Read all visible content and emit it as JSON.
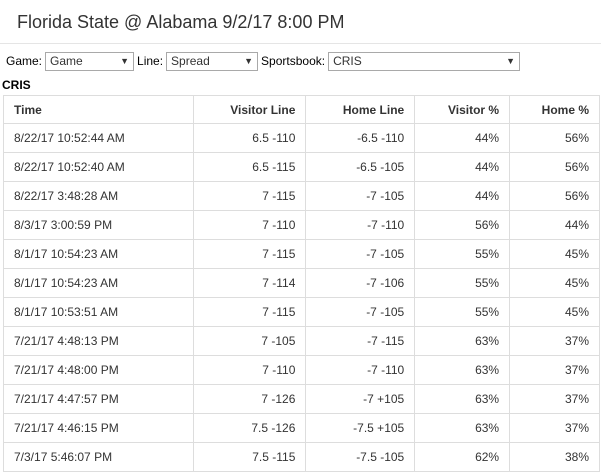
{
  "page": {
    "title": "Florida State @ Alabama 9/2/17 8:00 PM"
  },
  "filters": {
    "game_label": "Game:",
    "game_value": "Game",
    "line_label": "Line:",
    "line_value": "Spread",
    "sportsbook_label": "Sportsbook:",
    "sportsbook_value": "CRIS"
  },
  "section": {
    "title": "CRIS"
  },
  "table": {
    "headers": [
      "Time",
      "Visitor Line",
      "Home Line",
      "Visitor %",
      "Home %"
    ],
    "rows": [
      [
        "8/22/17 10:52:44 AM",
        "6.5 -110",
        "-6.5 -110",
        "44%",
        "56%"
      ],
      [
        "8/22/17 10:52:40 AM",
        "6.5 -115",
        "-6.5 -105",
        "44%",
        "56%"
      ],
      [
        "8/22/17 3:48:28 AM",
        "7 -115",
        "-7 -105",
        "44%",
        "56%"
      ],
      [
        "8/3/17 3:00:59 PM",
        "7 -110",
        "-7 -110",
        "56%",
        "44%"
      ],
      [
        "8/1/17 10:54:23 AM",
        "7 -115",
        "-7 -105",
        "55%",
        "45%"
      ],
      [
        "8/1/17 10:54:23 AM",
        "7 -114",
        "-7 -106",
        "55%",
        "45%"
      ],
      [
        "8/1/17 10:53:51 AM",
        "7 -115",
        "-7 -105",
        "55%",
        "45%"
      ],
      [
        "7/21/17 4:48:13 PM",
        "7 -105",
        "-7 -115",
        "63%",
        "37%"
      ],
      [
        "7/21/17 4:48:00 PM",
        "7 -110",
        "-7 -110",
        "63%",
        "37%"
      ],
      [
        "7/21/17 4:47:57 PM",
        "7 -126",
        "-7 +105",
        "63%",
        "37%"
      ],
      [
        "7/21/17 4:46:15 PM",
        "7.5 -126",
        "-7.5 +105",
        "63%",
        "37%"
      ],
      [
        "7/3/17 5:46:07 PM",
        "7.5 -115",
        "-7.5 -105",
        "62%",
        "38%"
      ]
    ]
  }
}
